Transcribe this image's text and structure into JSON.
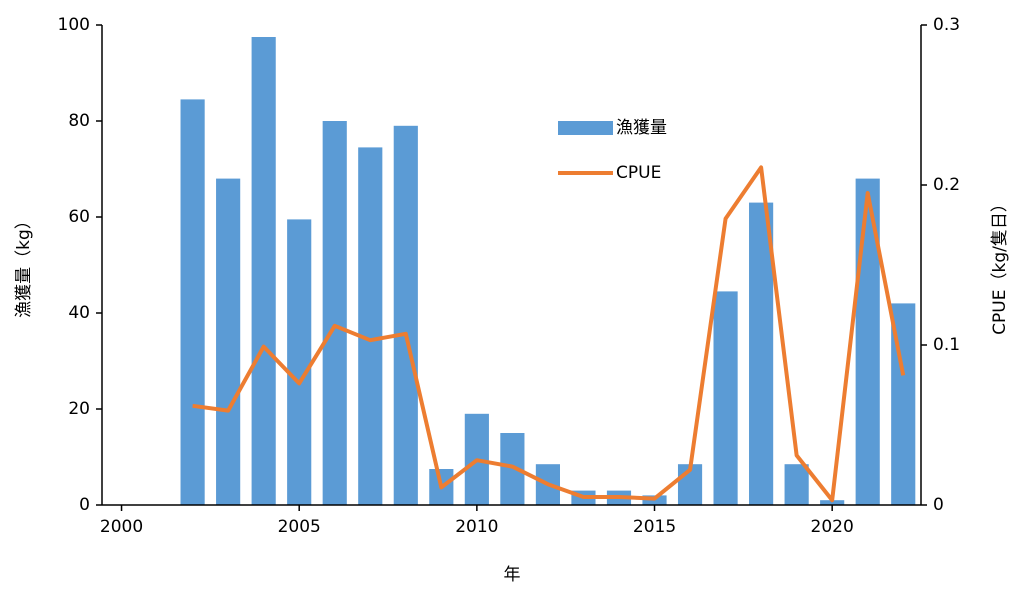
{
  "chart_data": {
    "type": "bar",
    "x": [
      2002,
      2003,
      2004,
      2005,
      2006,
      2007,
      2008,
      2009,
      2010,
      2011,
      2012,
      2013,
      2014,
      2015,
      2016,
      2017,
      2018,
      2019,
      2020,
      2021,
      2022
    ],
    "series": [
      {
        "name": "漁獲量",
        "type": "bar",
        "color": "#5b9bd5",
        "axis": "y",
        "values": [
          84.5,
          68,
          97.5,
          59.5,
          80,
          74.5,
          79,
          7.5,
          19,
          15,
          8.5,
          3,
          3,
          2,
          8.5,
          44.5,
          63,
          8.5,
          1,
          68,
          42
        ]
      },
      {
        "name": "CPUE",
        "type": "line",
        "color": "#ed7d31",
        "axis": "y2",
        "values": [
          0.062,
          0.059,
          0.099,
          0.076,
          0.112,
          0.103,
          0.107,
          0.011,
          0.028,
          0.024,
          0.013,
          0.005,
          0.005,
          0.004,
          0.022,
          0.179,
          0.211,
          0.031,
          0.003,
          0.195,
          0.081
        ]
      }
    ],
    "xlabel": "年",
    "ylabel": "漁獲量（kg）",
    "y2label": "CPUE（kg/隻日）",
    "xlim": [
      1999.45,
      2022.5
    ],
    "xticks": [
      2000,
      2005,
      2010,
      2015,
      2020
    ],
    "ylim": [
      0,
      100
    ],
    "yticks": [
      0,
      20,
      40,
      60,
      80,
      100
    ],
    "y2lim": [
      0,
      0.3
    ],
    "y2ticks": [
      0,
      0.1,
      0.2,
      0.3
    ],
    "grid": false,
    "legend": "top-center"
  }
}
